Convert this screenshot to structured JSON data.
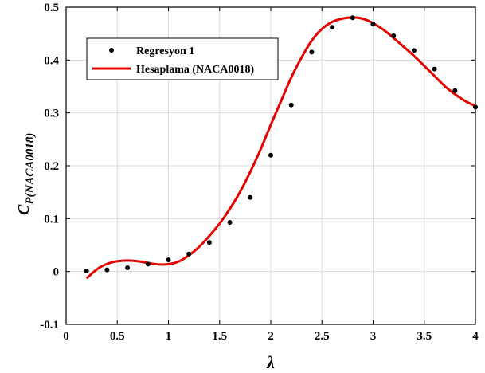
{
  "chart_data": {
    "type": "line",
    "xlabel": "λ",
    "ylabel": {
      "main": "C",
      "sub": "P(NACA0018)"
    },
    "xlim": [
      0,
      4
    ],
    "ylim": [
      -0.1,
      0.5
    ],
    "grid": true,
    "legend_position": "top-left",
    "x_ticks": [
      "0",
      "0.5",
      "1",
      "1.5",
      "2",
      "2.5",
      "3",
      "3.5",
      "4"
    ],
    "y_ticks": [
      "-0.1",
      "0",
      "0.1",
      "0.2",
      "0.3",
      "0.4",
      "0.5"
    ],
    "series": [
      {
        "name": "Regresyon 1",
        "style": "markers",
        "color": "#000000",
        "x": [
          0.2,
          0.4,
          0.6,
          0.8,
          1.0,
          1.2,
          1.4,
          1.6,
          1.8,
          2.0,
          2.2,
          2.4,
          2.6,
          2.8,
          3.0,
          3.2,
          3.4,
          3.6,
          3.8,
          4.0
        ],
        "y": [
          0.001,
          0.003,
          0.007,
          0.014,
          0.022,
          0.033,
          0.055,
          0.093,
          0.14,
          0.22,
          0.315,
          0.415,
          0.462,
          0.48,
          0.468,
          0.446,
          0.418,
          0.383,
          0.342,
          0.311
        ]
      },
      {
        "name": "Hesaplama (NACA0018)",
        "style": "line",
        "color": "#e60000",
        "x": [
          0.2,
          0.3,
          0.4,
          0.5,
          0.6,
          0.7,
          0.8,
          0.9,
          1.0,
          1.1,
          1.2,
          1.3,
          1.4,
          1.5,
          1.6,
          1.7,
          1.8,
          1.9,
          2.0,
          2.1,
          2.2,
          2.3,
          2.4,
          2.5,
          2.6,
          2.7,
          2.8,
          2.9,
          3.0,
          3.1,
          3.2,
          3.3,
          3.4,
          3.5,
          3.6,
          3.7,
          3.8,
          3.9,
          4.0
        ],
        "y": [
          -0.013,
          0.005,
          0.015,
          0.02,
          0.021,
          0.02,
          0.016,
          0.013,
          0.013,
          0.018,
          0.03,
          0.046,
          0.067,
          0.09,
          0.118,
          0.15,
          0.188,
          0.23,
          0.278,
          0.322,
          0.368,
          0.405,
          0.438,
          0.46,
          0.473,
          0.479,
          0.481,
          0.479,
          0.47,
          0.458,
          0.442,
          0.425,
          0.408,
          0.389,
          0.37,
          0.35,
          0.335,
          0.322,
          0.313
        ]
      }
    ]
  }
}
